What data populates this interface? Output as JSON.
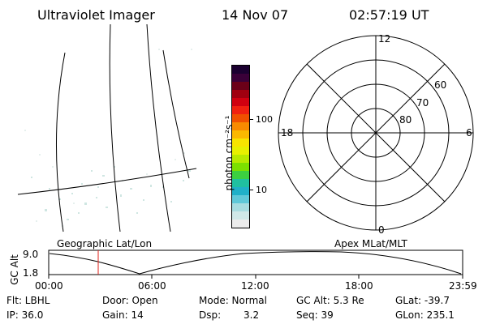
{
  "header": {
    "instrument": "Ultraviolet Imager",
    "date": "14 Nov 07",
    "time": "02:57:19 UT"
  },
  "geo_panel": {
    "label": "Geographic Lat/Lon"
  },
  "colorbar": {
    "unit_label": "photon cm⁻²s⁻¹",
    "ticks": [
      "100",
      "10"
    ],
    "colors": [
      "#1b0030",
      "#3a0038",
      "#6b0018",
      "#a00010",
      "#d00010",
      "#f02010",
      "#f05000",
      "#f88a00",
      "#fbb800",
      "#f8e400",
      "#e8f000",
      "#b8ea00",
      "#7ce000",
      "#3cd040",
      "#20c0a0",
      "#20b0c8",
      "#60c8d8",
      "#a8dce0",
      "#d0e8e8",
      "#ececec"
    ]
  },
  "polar_plot": {
    "mlt_labels": [
      "12",
      "18",
      "6",
      "0"
    ],
    "lat_labels": [
      "60",
      "70",
      "80"
    ]
  },
  "apex_label": "Apex MLat/MLT",
  "gc_alt_chart": {
    "ylabel": "GC Alt",
    "y_ticks": [
      "9.0",
      "1.8"
    ],
    "x_ticks": [
      "00:00",
      "06:00",
      "12:00",
      "18:00",
      "23:59"
    ],
    "marker_time": "02:57"
  },
  "status": {
    "row1": {
      "flt": "Flt: LBHL",
      "door": "Door: Open",
      "mode": "Mode: Normal",
      "gc_alt": "GC Alt: 5.3 Re",
      "glat": "GLat: -39.7"
    },
    "row2": {
      "ip": "IP: 36.0",
      "gain": "Gain: 14",
      "dsp_label": "Dsp:",
      "dsp_value": "3.2",
      "seq": "Seq: 39",
      "glon": "GLon: 235.1"
    }
  }
}
